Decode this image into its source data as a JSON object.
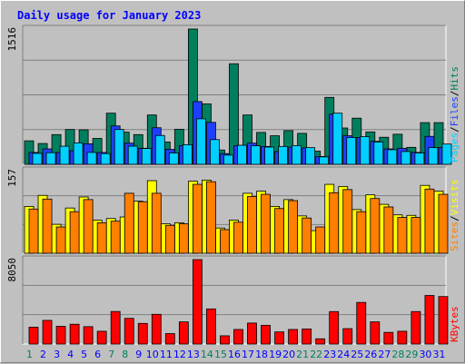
{
  "chart_data": [
    {
      "type": "bar",
      "title": "Daily usage for January 2023",
      "ymax_label": "1516",
      "ylim": [
        0,
        1516
      ],
      "grid": true,
      "categories": [
        "1",
        "2",
        "3",
        "4",
        "5",
        "6",
        "7",
        "8",
        "9",
        "10",
        "11",
        "12",
        "13",
        "14",
        "15",
        "16",
        "17",
        "18",
        "19",
        "20",
        "21",
        "22",
        "23",
        "24",
        "25",
        "26",
        "27",
        "28",
        "29",
        "30",
        "31"
      ],
      "series": [
        {
          "name": "Hits",
          "color": "#007f5f",
          "values": [
            263,
            233,
            333,
            390,
            387,
            290,
            573,
            360,
            333,
            553,
            250,
            393,
            1516,
            677,
            160,
            1127,
            553,
            357,
            320,
            377,
            347,
            147,
            750,
            407,
            517,
            363,
            303,
            337,
            190,
            467,
            467
          ]
        },
        {
          "name": "Files",
          "color": "#1f3fff",
          "values": [
            133,
            173,
            133,
            153,
            230,
            133,
            430,
            237,
            180,
            410,
            167,
            210,
            703,
            470,
            120,
            210,
            237,
            200,
            143,
            193,
            183,
            87,
            563,
            320,
            300,
            257,
            173,
            180,
            133,
            313,
            187
          ]
        },
        {
          "name": "Pages",
          "color": "#00cfff",
          "values": [
            123,
            130,
            203,
            240,
            133,
            120,
            390,
            203,
            177,
            323,
            127,
            220,
            510,
            277,
            103,
            213,
            207,
            193,
            200,
            210,
            187,
            83,
            573,
            300,
            310,
            250,
            163,
            143,
            127,
            187,
            227
          ]
        }
      ],
      "legend": [
        "Pages",
        "Files",
        "Hits"
      ]
    },
    {
      "type": "bar",
      "ymax_label": "157",
      "ylim": [
        0,
        157
      ],
      "grid": true,
      "categories": [
        "1",
        "2",
        "3",
        "4",
        "5",
        "6",
        "7",
        "8",
        "9",
        "10",
        "11",
        "12",
        "13",
        "14",
        "15",
        "16",
        "17",
        "18",
        "19",
        "20",
        "21",
        "22",
        "23",
        "24",
        "25",
        "26",
        "27",
        "28",
        "29",
        "30",
        "31"
      ],
      "series": [
        {
          "name": "Visits",
          "color": "#ffff00",
          "values": [
            89,
            110,
            55,
            86,
            107,
            63,
            66,
            69,
            99,
            138,
            56,
            58,
            137,
            139,
            48,
            63,
            114,
            118,
            89,
            102,
            71,
            43,
            131,
            127,
            83,
            111,
            93,
            73,
            72,
            129,
            118
          ]
        },
        {
          "name": "Sites",
          "color": "#ff7f00",
          "values": [
            84,
            103,
            50,
            79,
            102,
            58,
            61,
            114,
            98,
            114,
            53,
            56,
            131,
            136,
            45,
            59,
            108,
            112,
            85,
            100,
            67,
            50,
            115,
            121,
            79,
            104,
            88,
            68,
            68,
            122,
            112
          ]
        }
      ],
      "legend": [
        "Sites",
        "Visits"
      ]
    },
    {
      "type": "bar",
      "ymax_label": "8050",
      "ylim": [
        0,
        8050
      ],
      "grid": true,
      "categories": [
        "1",
        "2",
        "3",
        "4",
        "5",
        "6",
        "7",
        "8",
        "9",
        "10",
        "11",
        "12",
        "13",
        "14",
        "15",
        "16",
        "17",
        "18",
        "19",
        "20",
        "21",
        "22",
        "23",
        "24",
        "25",
        "26",
        "27",
        "28",
        "29",
        "30",
        "31"
      ],
      "series": [
        {
          "name": "KBytes",
          "color": "#ff0000",
          "values": [
            1610,
            2256,
            1688,
            1887,
            1657,
            1219,
            3102,
            2449,
            1967,
            2832,
            995,
            2116,
            8050,
            3348,
            785,
            1387,
            2000,
            1787,
            1157,
            1387,
            1437,
            500,
            3096,
            1467,
            3967,
            2116,
            1111,
            1219,
            3096,
            4630,
            4526
          ]
        }
      ],
      "legend": [
        "KBytes"
      ]
    }
  ],
  "weekend_days": [
    1,
    7,
    8,
    14,
    15,
    21,
    22,
    28,
    29
  ],
  "colors": {
    "weekday_label": "#0000ff",
    "weekend_label": "#00805f",
    "title": "#0000ff"
  }
}
